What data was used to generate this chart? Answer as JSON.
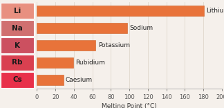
{
  "elements": [
    "Cs",
    "Rb",
    "K",
    "Na",
    "Li"
  ],
  "names": [
    "Caesium",
    "Rubidium",
    "Potassium",
    "Sodium",
    "Lithium"
  ],
  "melting_points": [
    28.5,
    39.3,
    63.5,
    97.8,
    180.5
  ],
  "bar_color": "#E8733A",
  "bar_edge_color": "#CC6025",
  "xlabel": "Melting Point (°C)",
  "xlim": [
    0,
    200
  ],
  "xticks": [
    0,
    20,
    40,
    60,
    80,
    100,
    120,
    140,
    160,
    180,
    200
  ],
  "background_color": "#F5F0EB",
  "grid_color": "#E0D8CC",
  "left_panel_colors": [
    "#E8304A",
    "#D94050",
    "#CC5060",
    "#D07070",
    "#E89080"
  ],
  "label_fontsize": 7.5,
  "xlabel_fontsize": 6.5,
  "tick_fontsize": 6,
  "bar_label_fontsize": 6.5
}
